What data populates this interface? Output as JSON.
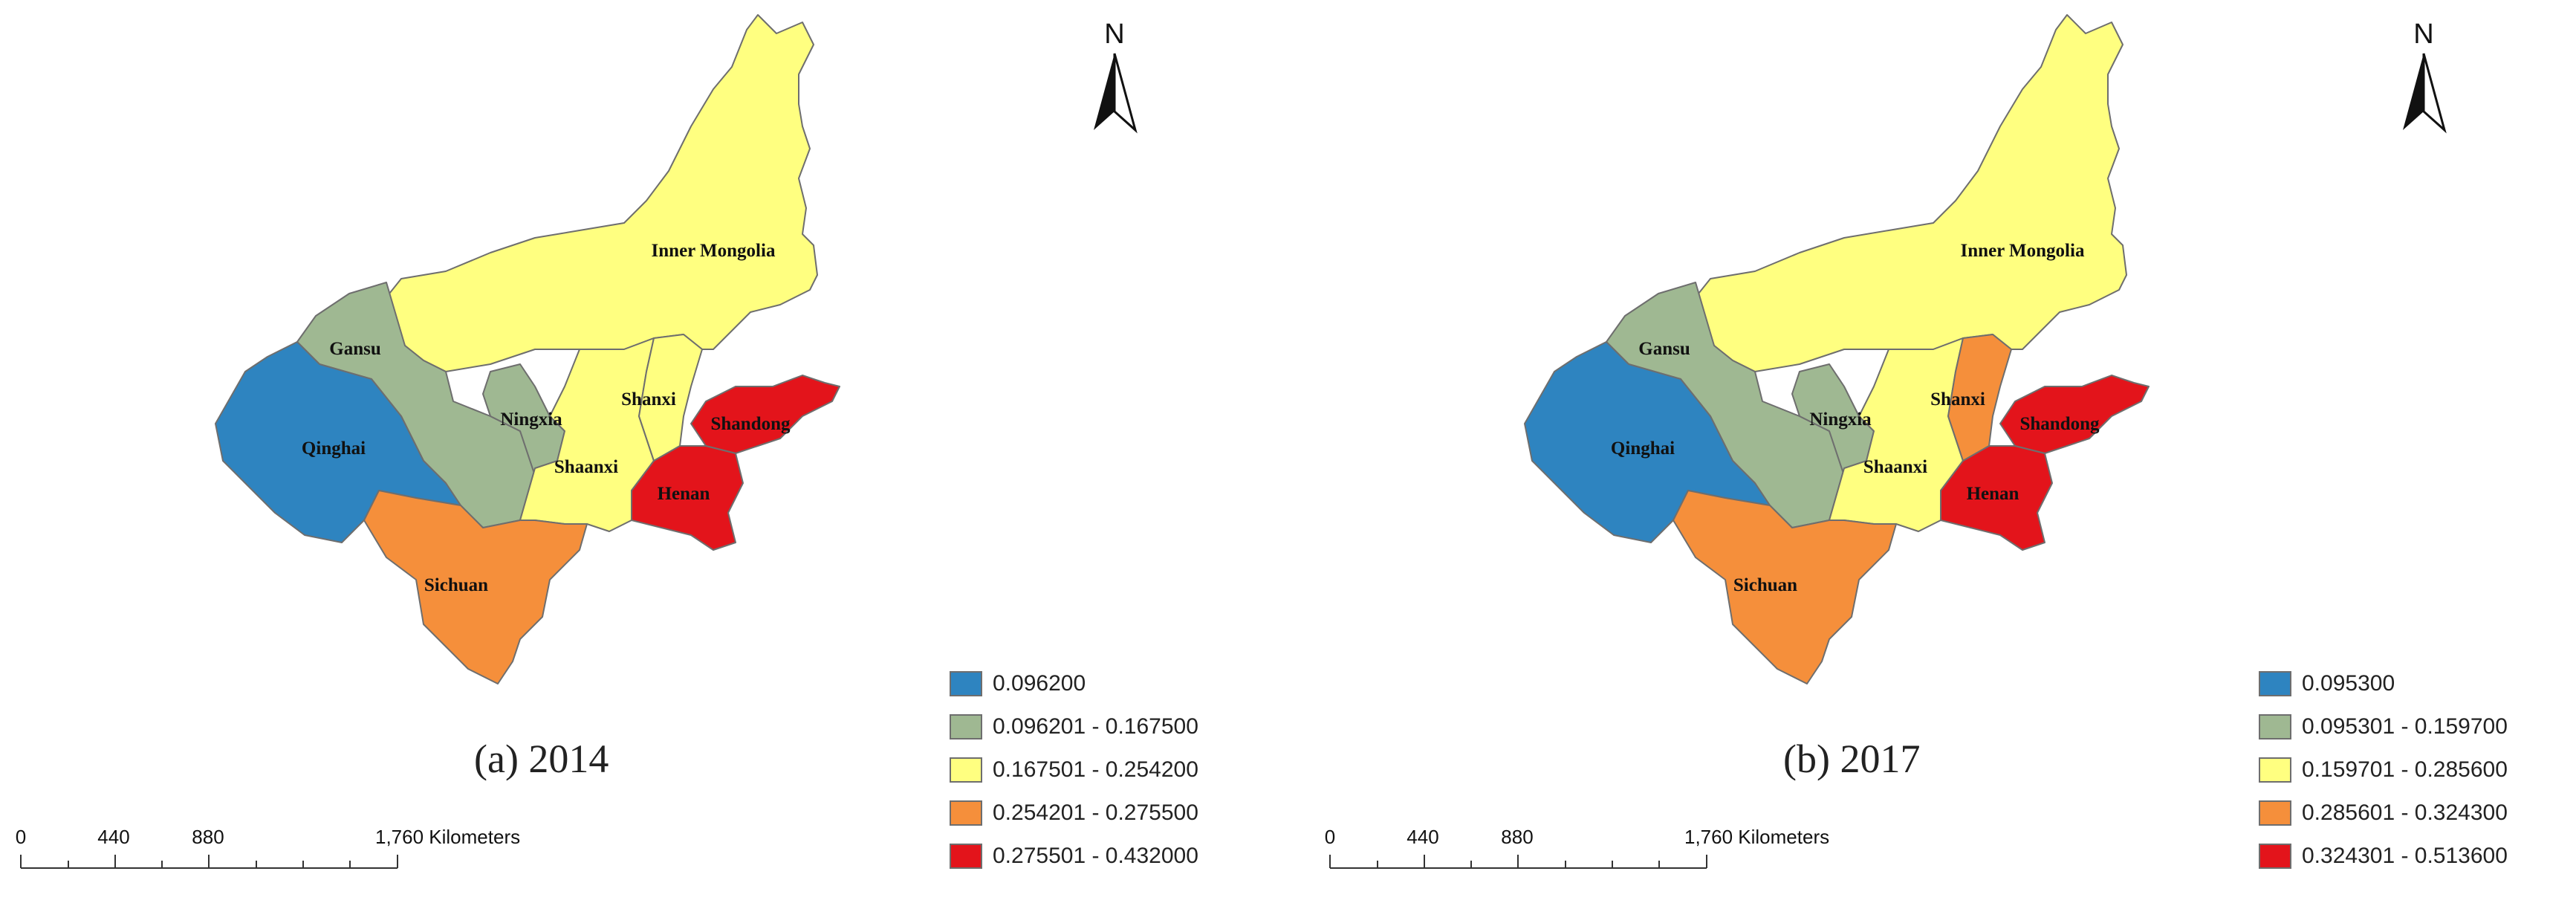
{
  "colors": {
    "class1": "#2e84c0",
    "class2": "#9fb892",
    "class3": "#ffff80",
    "class4": "#f58f3b",
    "class5": "#e3141b"
  },
  "north_arrow": {
    "letter": "N"
  },
  "scale_bar": {
    "ticks": [
      "0",
      "440",
      "880",
      "1,760 Kilometers"
    ]
  },
  "province_labels": {
    "inner_mongolia": "Inner Mongolia",
    "gansu": "Gansu",
    "ningxia": "Ningxia",
    "shanxi": "Shanxi",
    "shandong": "Shandong",
    "qinghai": "Qinghai",
    "shaanxi": "Shaanxi",
    "henan": "Henan",
    "sichuan": "Sichuan"
  },
  "maps": [
    {
      "caption": "(a) 2014",
      "classes": {
        "qinghai": 1,
        "gansu": 2,
        "ningxia": 2,
        "inner_mongolia": 3,
        "shanxi": 3,
        "shaanxi": 3,
        "sichuan": 4,
        "henan": 5,
        "shandong": 5
      },
      "legend": [
        {
          "label": "0.096200",
          "class": 1
        },
        {
          "label": "0.096201 - 0.167500",
          "class": 2
        },
        {
          "label": "0.167501 - 0.254200",
          "class": 3
        },
        {
          "label": "0.254201 - 0.275500",
          "class": 4
        },
        {
          "label": "0.275501 - 0.432000",
          "class": 5
        }
      ]
    },
    {
      "caption": "(b) 2017",
      "classes": {
        "qinghai": 1,
        "gansu": 2,
        "ningxia": 2,
        "inner_mongolia": 3,
        "shaanxi": 3,
        "shanxi": 4,
        "sichuan": 4,
        "henan": 5,
        "shandong": 5
      },
      "legend": [
        {
          "label": "0.095300",
          "class": 1
        },
        {
          "label": "0.095301 - 0.159700",
          "class": 2
        },
        {
          "label": "0.159701 - 0.285600",
          "class": 3
        },
        {
          "label": "0.285601 - 0.324300",
          "class": 4
        },
        {
          "label": "0.324301 - 0.513600",
          "class": 5
        }
      ]
    }
  ]
}
